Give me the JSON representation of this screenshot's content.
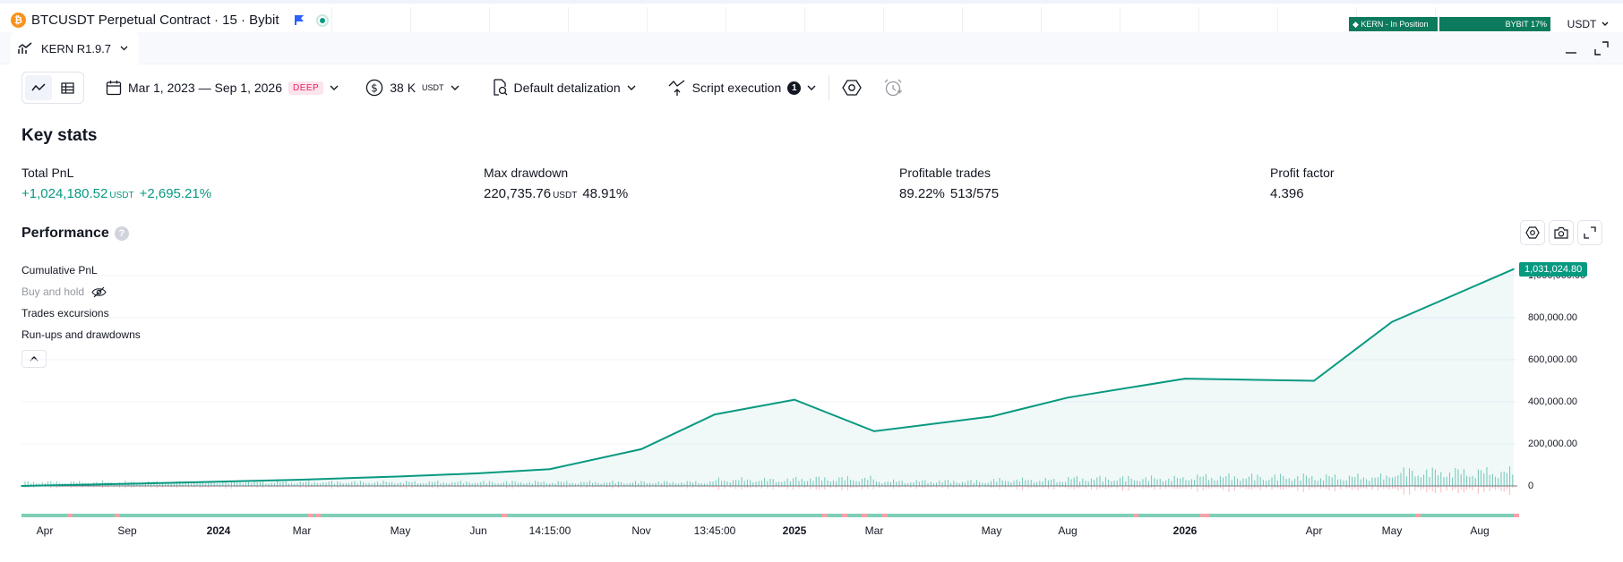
{
  "header": {
    "coin_symbol": "₿",
    "symbol_title": "BTCUSDT Perpetual Contract · 15 · Bybit",
    "position_label": "◆ KERN - In Position",
    "position_right": "BYBIT 17%",
    "currency": "USDT"
  },
  "panel": {
    "strategy_name": "KERN R1.9.7"
  },
  "toolbar": {
    "date_range": "Mar 1, 2023 — Sep 1, 2026",
    "deep_badge": "DEEP",
    "capital": "38 K",
    "capital_unit": "USDT",
    "detalization": "Default detalization",
    "script_execution": "Script execution",
    "script_badge": "1"
  },
  "key_stats": {
    "title": "Key stats",
    "total_pnl": {
      "label": "Total PnL",
      "value": "+1,024,180.52",
      "unit": "USDT",
      "pct": "+2,695.21%"
    },
    "max_drawdown": {
      "label": "Max drawdown",
      "value": "220,735.76",
      "unit": "USDT",
      "pct": "48.91%"
    },
    "profitable_trades": {
      "label": "Profitable trades",
      "pct": "89.22%",
      "count": "513/575"
    },
    "profit_factor": {
      "label": "Profit factor",
      "value": "4.396"
    }
  },
  "performance": {
    "title": "Performance",
    "help": "?",
    "legend": [
      "Cumulative PnL",
      "Buy and hold",
      "Trades excursions",
      "Run-ups and drawdowns"
    ],
    "last_value": "1,031,024.80"
  },
  "colors": {
    "green": "#089981",
    "red": "#f23645",
    "badge_bg": "#0c7a5c"
  },
  "chart_data": {
    "type": "line",
    "series": [
      {
        "name": "Cumulative PnL",
        "x": [
          "Apr",
          "Sep",
          "2024",
          "Mar",
          "May",
          "Jun",
          "14:15:00",
          "Nov",
          "13:45:00",
          "2025",
          "Mar",
          "May",
          "Aug",
          "2026",
          "Apr",
          "May",
          "Aug"
        ],
        "values": [
          0,
          10000,
          20000,
          30000,
          45000,
          60000,
          80000,
          175000,
          340000,
          410000,
          260000,
          330000,
          420000,
          510000,
          500000,
          780000,
          1031024.8
        ]
      }
    ],
    "yticks": [
      "0",
      "200,000.00",
      "400,000.00",
      "600,000.00",
      "800,000.00",
      "1,000,000.00"
    ],
    "ylim": [
      0,
      1050000
    ],
    "xticks": [
      "Apr",
      "Sep",
      "2024",
      "Mar",
      "May",
      "Jun",
      "14:15:00",
      "Nov",
      "13:45:00",
      "2025",
      "Mar",
      "May",
      "Aug",
      "2026",
      "Apr",
      "May",
      "Aug"
    ],
    "bold_xticks": [
      "2024",
      "2025",
      "2026"
    ],
    "grid": true
  }
}
